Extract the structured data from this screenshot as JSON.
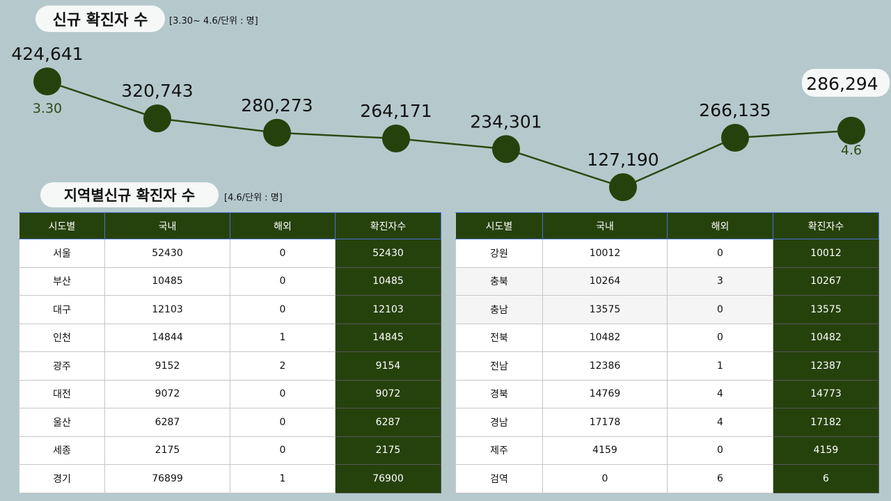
{
  "title1": "신규 확진자 수",
  "sub1": "[3.30~ 4.6/단위 : 명]",
  "title2": "지역별신규 확진자 수",
  "sub2": "[4.6/단위 : 명]",
  "colors": {
    "accent": "#26420c",
    "background": "#b5c9cc"
  },
  "chart_data": {
    "type": "line",
    "values": [
      424641,
      320743,
      280273,
      264171,
      234301,
      127190,
      266135,
      286294
    ],
    "value_labels": [
      "424,641",
      "320,743",
      "280,273",
      "264,171",
      "234,301",
      "127,190",
      "266,135",
      "286,294"
    ],
    "x_labels_shown": {
      "first": "3.30",
      "last": "4.6"
    },
    "grid": false
  },
  "table_headers": [
    "시도별",
    "국내",
    "해외",
    "확진자수"
  ],
  "left_rows": [
    [
      "서울",
      "52430",
      "0",
      "52430"
    ],
    [
      "부산",
      "10485",
      "0",
      "10485"
    ],
    [
      "대구",
      "12103",
      "0",
      "12103"
    ],
    [
      "인천",
      "14844",
      "1",
      "14845"
    ],
    [
      "광주",
      "9152",
      "2",
      "9154"
    ],
    [
      "대전",
      "9072",
      "0",
      "9072"
    ],
    [
      "울산",
      "6287",
      "0",
      "6287"
    ],
    [
      "세종",
      "2175",
      "0",
      "2175"
    ],
    [
      "경기",
      "76899",
      "1",
      "76900"
    ]
  ],
  "right_rows": [
    [
      "강원",
      "10012",
      "0",
      "10012"
    ],
    [
      "충북",
      "10264",
      "3",
      "10267"
    ],
    [
      "충남",
      "13575",
      "0",
      "13575"
    ],
    [
      "전북",
      "10482",
      "0",
      "10482"
    ],
    [
      "전남",
      "12386",
      "1",
      "12387"
    ],
    [
      "경북",
      "14769",
      "4",
      "14773"
    ],
    [
      "경남",
      "17178",
      "4",
      "17182"
    ],
    [
      "제주",
      "4159",
      "0",
      "4159"
    ],
    [
      "검역",
      "0",
      "6",
      "6"
    ]
  ]
}
